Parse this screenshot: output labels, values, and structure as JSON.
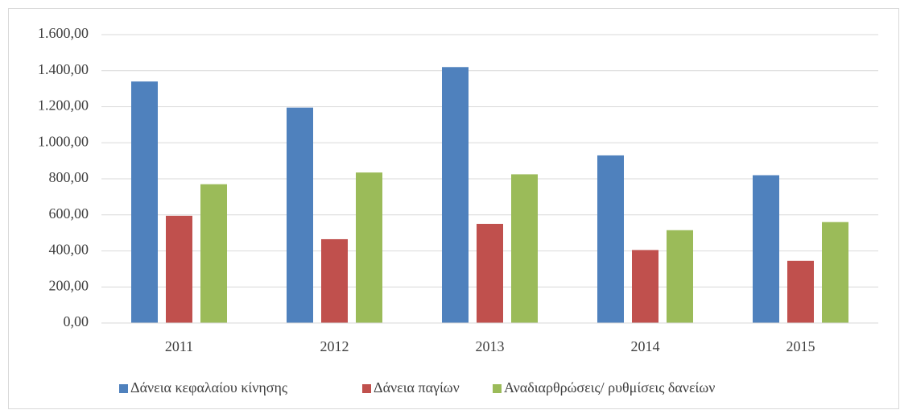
{
  "chart_data": {
    "type": "bar",
    "categories": [
      "2011",
      "2012",
      "2013",
      "2014",
      "2015"
    ],
    "series": [
      {
        "name": "Δάνεια κεφαλαίου κίνησης",
        "color": "#4f81bd",
        "values": [
          1340,
          1195,
          1420,
          930,
          820
        ]
      },
      {
        "name": "Δάνεια παγίων",
        "color": "#c0504d",
        "values": [
          595,
          465,
          550,
          405,
          345
        ]
      },
      {
        "name": "Αναδιαρθρώσεις/ ρυθμίσεις δανείων",
        "color": "#9bbb59",
        "values": [
          770,
          835,
          825,
          515,
          560
        ]
      }
    ],
    "ylim": [
      0,
      1600
    ],
    "yticks": [
      {
        "value": 0,
        "label": "0,00"
      },
      {
        "value": 200,
        "label": "200,00"
      },
      {
        "value": 400,
        "label": "400,00"
      },
      {
        "value": 600,
        "label": "600,00"
      },
      {
        "value": 800,
        "label": "800,00"
      },
      {
        "value": 1000,
        "label": "1.000,00"
      },
      {
        "value": 1200,
        "label": "1.200,00"
      },
      {
        "value": 1400,
        "label": "1.400,00"
      },
      {
        "value": 1600,
        "label": "1.600,00"
      }
    ],
    "grid": true,
    "legend": "bottom"
  }
}
